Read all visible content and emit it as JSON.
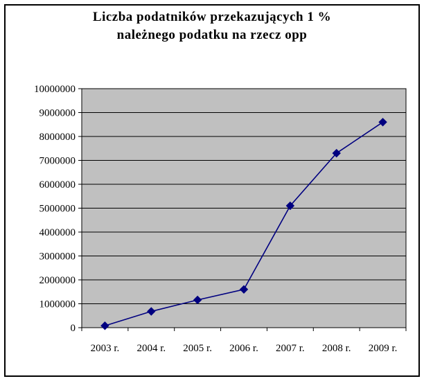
{
  "chart_data": {
    "type": "line",
    "title": "Liczba podatników przekazujących 1 %\nnależnego podatku na rzecz opp",
    "xlabel": "",
    "ylabel": "",
    "categories": [
      "2003 r.",
      "2004 r.",
      "2005 r.",
      "2006 r.",
      "2007 r.",
      "2008 r.",
      "2009 r."
    ],
    "series": [
      {
        "values": [
          80000,
          680000,
          1160000,
          1600000,
          5100000,
          7300000,
          8600000
        ]
      }
    ],
    "ylim": [
      0,
      10000000
    ],
    "yticks": [
      "0",
      "1000000",
      "2000000",
      "3000000",
      "4000000",
      "5000000",
      "6000000",
      "7000000",
      "8000000",
      "9000000",
      "10000000"
    ],
    "ytick_values": [
      0,
      1000000,
      2000000,
      3000000,
      4000000,
      5000000,
      6000000,
      7000000,
      8000000,
      9000000,
      10000000
    ],
    "grid": true,
    "legend": "none",
    "colors": {
      "plot_background": "#c0c0c0",
      "line": "#000080",
      "marker": "#000080",
      "gridline": "#000000",
      "frame": "#000000"
    },
    "marker": "diamond"
  }
}
